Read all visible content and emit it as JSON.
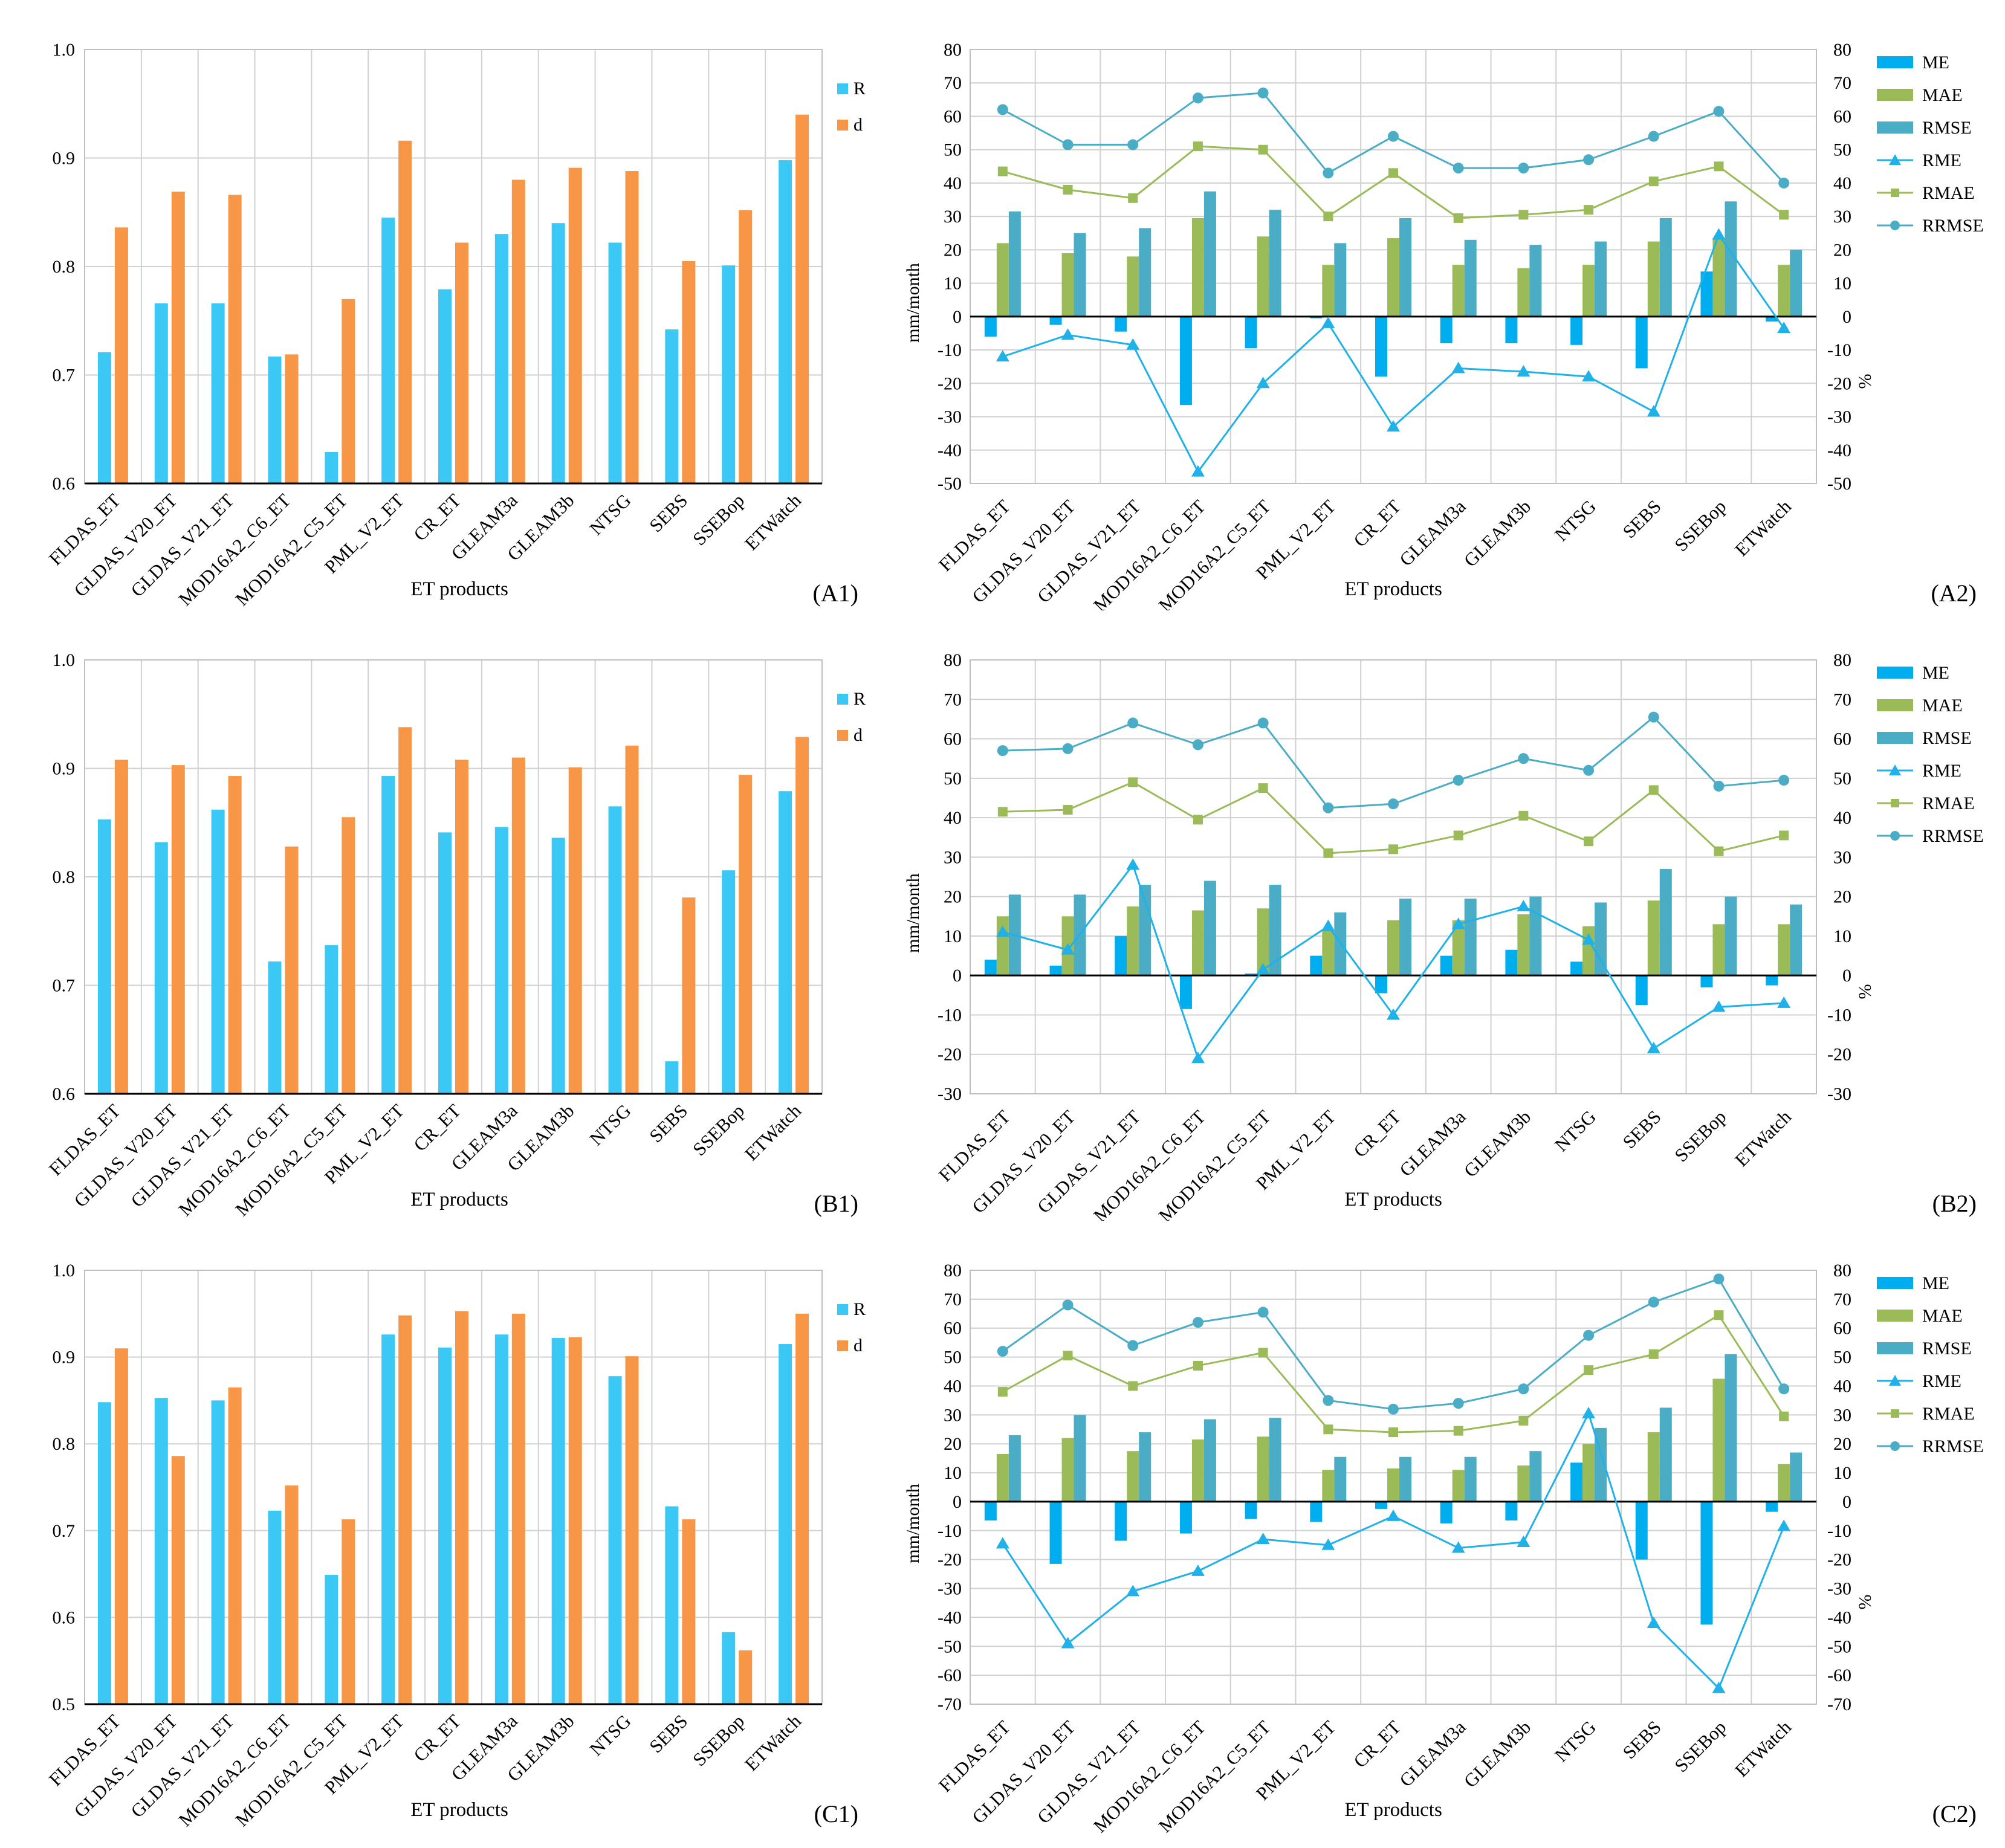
{
  "categories": [
    "FLDAS_ET",
    "GLDAS_V20_ET",
    "GLDAS_V21_ET",
    "MOD16A2_C6_ET",
    "MOD16A2_C5_ET",
    "PML_V2_ET",
    "CR_ET",
    "GLEAM3a",
    "GLEAM3b",
    "NTSG",
    "SEBS",
    "SSEBop",
    "ETWatch"
  ],
  "colors": {
    "R": "#3cc8f5",
    "d": "#f79646",
    "ME": "#00aeef",
    "MAE": "#9bbb59",
    "RMSE": "#4bacc6",
    "RME": "#1fb1e8",
    "RMAE": "#9bbb59",
    "RRMSE": "#4bacc6"
  },
  "chart_data": [
    {
      "panel": "(A1)",
      "type": "bar",
      "xlabel": "ET products",
      "ylim": [
        0.6,
        1.0
      ],
      "yticks": [
        "0.6",
        "0.7",
        "0.8",
        "0.9",
        "1.0"
      ],
      "series": [
        {
          "name": "R",
          "values": [
            0.721,
            0.766,
            0.766,
            0.717,
            0.629,
            0.845,
            0.779,
            0.83,
            0.84,
            0.822,
            0.742,
            0.801,
            0.898
          ]
        },
        {
          "name": "d",
          "values": [
            0.836,
            0.869,
            0.866,
            0.719,
            0.77,
            0.916,
            0.822,
            0.88,
            0.891,
            0.888,
            0.805,
            0.852,
            0.94
          ]
        }
      ]
    },
    {
      "panel": "(A2)",
      "type": "bar+line",
      "xlabel": "ET products",
      "ylabel": "mm/month",
      "y2label": "%",
      "ylim": [
        -50,
        80
      ],
      "yticks": [
        "-50",
        "-40",
        "-30",
        "-20",
        "-10",
        "0",
        "10",
        "20",
        "30",
        "40",
        "50",
        "60",
        "70",
        "80"
      ],
      "bars": [
        {
          "name": "ME",
          "values": [
            -6,
            -2.5,
            -4.5,
            -26.5,
            -9.5,
            -0.5,
            -18,
            -8,
            -8,
            -8.5,
            -15.5,
            13.5,
            -1.5
          ]
        },
        {
          "name": "MAE",
          "values": [
            22,
            19,
            18,
            29.5,
            24,
            15.5,
            23.5,
            15.5,
            14.5,
            15.5,
            22.5,
            23.5,
            15.5
          ]
        },
        {
          "name": "RMSE",
          "values": [
            31.5,
            25,
            26.5,
            37.5,
            32,
            22,
            29.5,
            23,
            21.5,
            22.5,
            29.5,
            34.5,
            20
          ]
        }
      ],
      "lines": [
        {
          "name": "RME",
          "values": [
            -12,
            -5.5,
            -8.5,
            -46.5,
            -20,
            -2,
            -33,
            -15.5,
            -16.5,
            -18,
            -28.5,
            24.5,
            -3.5
          ]
        },
        {
          "name": "RMAE",
          "values": [
            43.5,
            38,
            35.5,
            51,
            50,
            30,
            43,
            29.5,
            30.5,
            32,
            40.5,
            45,
            30.5
          ]
        },
        {
          "name": "RRMSE",
          "values": [
            62,
            51.5,
            51.5,
            65.5,
            67,
            43,
            54,
            44.5,
            44.5,
            47,
            54,
            61.5,
            40
          ]
        }
      ]
    },
    {
      "panel": "(B1)",
      "type": "bar",
      "xlabel": "ET products",
      "ylim": [
        0.6,
        1.0
      ],
      "yticks": [
        "0.6",
        "0.7",
        "0.8",
        "0.9",
        "1.0"
      ],
      "series": [
        {
          "name": "R",
          "values": [
            0.853,
            0.832,
            0.862,
            0.722,
            0.737,
            0.893,
            0.841,
            0.846,
            0.836,
            0.865,
            0.63,
            0.806,
            0.879
          ]
        },
        {
          "name": "d",
          "values": [
            0.908,
            0.903,
            0.893,
            0.828,
            0.855,
            0.938,
            0.908,
            0.91,
            0.901,
            0.921,
            0.781,
            0.894,
            0.929
          ]
        }
      ]
    },
    {
      "panel": "(B2)",
      "type": "bar+line",
      "xlabel": "ET products",
      "ylabel": "mm/month",
      "y2label": "%",
      "ylim": [
        -30,
        80
      ],
      "yticks": [
        "-30",
        "-20",
        "-10",
        "0",
        "10",
        "20",
        "30",
        "40",
        "50",
        "60",
        "70",
        "80"
      ],
      "bars": [
        {
          "name": "ME",
          "values": [
            4,
            2.5,
            10,
            -8.5,
            0.5,
            5,
            -4.5,
            5,
            6.5,
            3.5,
            -7.5,
            -3,
            -2.5
          ]
        },
        {
          "name": "MAE",
          "values": [
            15,
            15,
            17.5,
            16.5,
            17,
            11.5,
            14,
            14,
            15.5,
            12.5,
            19,
            13,
            13
          ]
        },
        {
          "name": "RMSE",
          "values": [
            20.5,
            20.5,
            23,
            24,
            23,
            16,
            19.5,
            19.5,
            20,
            18.5,
            27,
            20,
            18
          ]
        }
      ],
      "lines": [
        {
          "name": "RME",
          "values": [
            11,
            6.5,
            28,
            -21,
            1.5,
            12.5,
            -10,
            13,
            17.5,
            9,
            -18.5,
            -8,
            -7
          ]
        },
        {
          "name": "RMAE",
          "values": [
            41.5,
            42,
            49,
            39.5,
            47.5,
            31,
            32,
            35.5,
            40.5,
            34,
            47,
            31.5,
            35.5
          ]
        },
        {
          "name": "RRMSE",
          "values": [
            57,
            57.5,
            64,
            58.5,
            64,
            42.5,
            43.5,
            49.5,
            55,
            52,
            65.5,
            48,
            49.5
          ]
        }
      ]
    },
    {
      "panel": "(C1)",
      "type": "bar",
      "xlabel": "ET products",
      "ylim": [
        0.5,
        1.0
      ],
      "yticks": [
        "0.5",
        "0.6",
        "0.7",
        "0.8",
        "0.9",
        "1.0"
      ],
      "series": [
        {
          "name": "R",
          "values": [
            0.848,
            0.853,
            0.85,
            0.723,
            0.649,
            0.926,
            0.911,
            0.926,
            0.922,
            0.878,
            0.728,
            0.583,
            0.915
          ]
        },
        {
          "name": "d",
          "values": [
            0.91,
            0.786,
            0.865,
            0.752,
            0.713,
            0.948,
            0.953,
            0.95,
            0.923,
            0.901,
            0.713,
            0.562,
            0.95
          ]
        }
      ]
    },
    {
      "panel": "(C2)",
      "type": "bar+line",
      "xlabel": "ET products",
      "ylabel": "mm/month",
      "y2label": "%",
      "ylim": [
        -70,
        80
      ],
      "yticks": [
        "-70",
        "-60",
        "-50",
        "-40",
        "-30",
        "-20",
        "-10",
        "0",
        "10",
        "20",
        "30",
        "40",
        "50",
        "60",
        "70",
        "80"
      ],
      "bars": [
        {
          "name": "ME",
          "values": [
            -6.5,
            -21.5,
            -13.5,
            -11,
            -6,
            -7,
            -2.5,
            -7.5,
            -6.5,
            13.5,
            -20,
            -42.5,
            -3.5
          ]
        },
        {
          "name": "MAE",
          "values": [
            16.5,
            22,
            17.5,
            21.5,
            22.5,
            11,
            11.5,
            11,
            12.5,
            20,
            24,
            42.5,
            13
          ]
        },
        {
          "name": "RMSE",
          "values": [
            23,
            30,
            24,
            28.5,
            29,
            15.5,
            15.5,
            15.5,
            17.5,
            25.5,
            32.5,
            51,
            17
          ]
        }
      ],
      "lines": [
        {
          "name": "RME",
          "values": [
            -14.5,
            -49,
            -31,
            -24,
            -13,
            -15,
            -5,
            -16,
            -14,
            30.5,
            -42,
            -64.5,
            -8.5
          ]
        },
        {
          "name": "RMAE",
          "values": [
            38,
            50.5,
            40,
            47,
            51.5,
            25,
            24,
            24.5,
            28,
            45.5,
            51,
            64.5,
            29.5
          ]
        },
        {
          "name": "RRMSE",
          "values": [
            52,
            68,
            54,
            62,
            65.5,
            35,
            32,
            34,
            39,
            57.5,
            69,
            77,
            39
          ]
        }
      ]
    }
  ]
}
